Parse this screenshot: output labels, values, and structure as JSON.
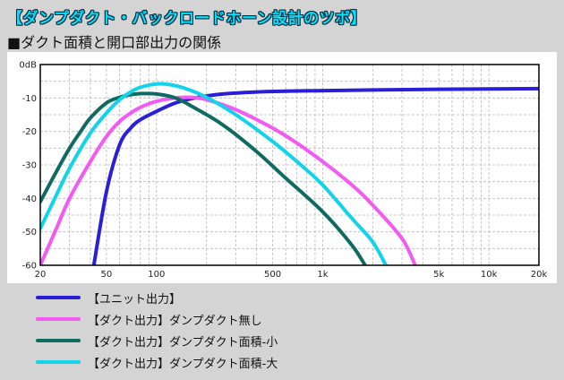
{
  "title": "【ダンプダクト・バックロードホーン設計のツボ】",
  "subtitle": "■ダクト面積と開口部出力の関係",
  "chart_data": {
    "type": "line",
    "x_scale": "log",
    "xlim": [
      20,
      20000
    ],
    "ylim": [
      -60,
      0
    ],
    "x_tick_labels": [
      {
        "v": 20,
        "label": "20"
      },
      {
        "v": 50,
        "label": "50"
      },
      {
        "v": 100,
        "label": "100"
      },
      {
        "v": 500,
        "label": "500"
      },
      {
        "v": 1000,
        "label": "1k"
      },
      {
        "v": 5000,
        "label": "5k"
      },
      {
        "v": 10000,
        "label": "10k"
      },
      {
        "v": 20000,
        "label": "20k"
      }
    ],
    "y_tick_labels": [
      {
        "v": 0,
        "label": "0dB"
      },
      {
        "v": -10,
        "label": "-10"
      },
      {
        "v": -20,
        "label": "-20"
      },
      {
        "v": -30,
        "label": "-30"
      },
      {
        "v": -40,
        "label": "-40"
      },
      {
        "v": -50,
        "label": "-50"
      },
      {
        "v": -60,
        "label": "-60"
      }
    ],
    "grid": true,
    "series": [
      {
        "name": "【ユニット出力】",
        "color": "#2a1fd6",
        "points": [
          [
            42,
            -60
          ],
          [
            50,
            -38
          ],
          [
            60,
            -24
          ],
          [
            70,
            -19
          ],
          [
            80,
            -16.5
          ],
          [
            100,
            -14
          ],
          [
            130,
            -11.5
          ],
          [
            170,
            -10
          ],
          [
            250,
            -8.8
          ],
          [
            400,
            -8.2
          ],
          [
            700,
            -7.9
          ],
          [
            1000,
            -7.8
          ],
          [
            2000,
            -7.6
          ],
          [
            5000,
            -7.4
          ],
          [
            10000,
            -7.3
          ],
          [
            20000,
            -7.2
          ]
        ]
      },
      {
        "name": "【ダクト出力】ダンプダクト無し",
        "color": "#f25af2",
        "points": [
          [
            20,
            -60
          ],
          [
            25,
            -49
          ],
          [
            30,
            -40
          ],
          [
            40,
            -29
          ],
          [
            50,
            -21.5
          ],
          [
            60,
            -17
          ],
          [
            70,
            -14.5
          ],
          [
            80,
            -12.8
          ],
          [
            100,
            -11
          ],
          [
            130,
            -10
          ],
          [
            160,
            -9.8
          ],
          [
            200,
            -10.5
          ],
          [
            300,
            -13.5
          ],
          [
            500,
            -19
          ],
          [
            700,
            -23.5
          ],
          [
            1000,
            -29
          ],
          [
            1500,
            -36
          ],
          [
            2000,
            -42
          ],
          [
            3000,
            -52
          ],
          [
            3600,
            -60
          ]
        ]
      },
      {
        "name": "【ダクト出力】ダンプダクト面積-小",
        "color": "#0f6b62",
        "points": [
          [
            20,
            -41
          ],
          [
            25,
            -32
          ],
          [
            30,
            -25
          ],
          [
            35,
            -20
          ],
          [
            40,
            -16
          ],
          [
            50,
            -11.5
          ],
          [
            60,
            -9.8
          ],
          [
            70,
            -9
          ],
          [
            80,
            -8.7
          ],
          [
            100,
            -8.8
          ],
          [
            130,
            -10
          ],
          [
            170,
            -13
          ],
          [
            250,
            -18
          ],
          [
            400,
            -26
          ],
          [
            600,
            -34
          ],
          [
            1000,
            -44
          ],
          [
            1500,
            -54
          ],
          [
            1800,
            -60
          ]
        ]
      },
      {
        "name": "【ダクト出力】ダンプダクト面積-大",
        "color": "#13d3ea",
        "points": [
          [
            20,
            -49
          ],
          [
            25,
            -39
          ],
          [
            30,
            -31
          ],
          [
            40,
            -20.5
          ],
          [
            50,
            -14.5
          ],
          [
            60,
            -10.5
          ],
          [
            70,
            -8.2
          ],
          [
            80,
            -6.8
          ],
          [
            100,
            -5.8
          ],
          [
            120,
            -6
          ],
          [
            150,
            -7.2
          ],
          [
            200,
            -9.8
          ],
          [
            300,
            -15
          ],
          [
            500,
            -23
          ],
          [
            700,
            -29
          ],
          [
            1000,
            -36
          ],
          [
            1500,
            -46
          ],
          [
            2000,
            -53
          ],
          [
            2400,
            -60
          ]
        ]
      }
    ]
  }
}
